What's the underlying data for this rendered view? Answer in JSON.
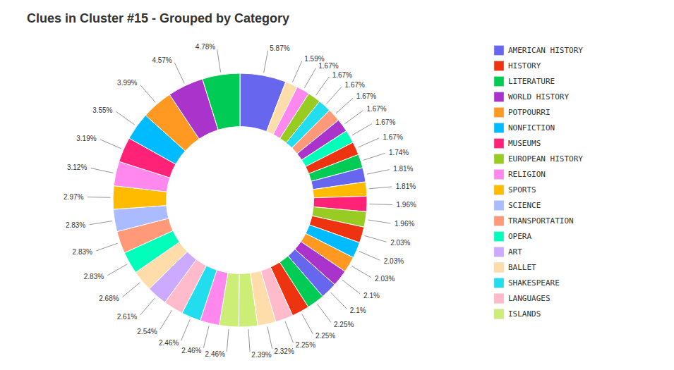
{
  "chart_data": {
    "type": "donut",
    "title": "Clues in Cluster #15 - Grouped by Category",
    "values": [
      5.87,
      1.59,
      1.67,
      1.67,
      1.67,
      1.67,
      1.67,
      1.67,
      1.67,
      1.74,
      1.81,
      1.81,
      1.96,
      1.96,
      2.03,
      2.03,
      2.03,
      2.1,
      2.1,
      2.25,
      2.25,
      2.25,
      2.32,
      2.39,
      2.46,
      2.46,
      2.46,
      2.54,
      2.61,
      2.68,
      2.83,
      2.83,
      2.83,
      2.97,
      3.12,
      3.19,
      3.55,
      3.99,
      4.57,
      4.78
    ],
    "value_labels": [
      "5.87%",
      "1.59%",
      "1.67%",
      "1.67%",
      "1.67%",
      "1.67%",
      "1.67%",
      "1.67%",
      "1.67%",
      "1.74%",
      "1.81%",
      "1.81%",
      "1.96%",
      "1.96%",
      "2.03%",
      "2.03%",
      "2.03%",
      "2.1%",
      "2.1%",
      "2.25%",
      "2.25%",
      "2.25%",
      "2.32%",
      "2.39%",
      "2.46%",
      "2.46%",
      "2.46%",
      "2.54%",
      "2.61%",
      "2.68%",
      "2.83%",
      "2.83%",
      "2.83%",
      "2.97%",
      "3.12%",
      "3.19%",
      "3.55%",
      "3.99%",
      "4.57%",
      "4.78%"
    ],
    "colors": [
      "#6666ee",
      "#ffddaa",
      "#ff88ee",
      "#99cc22",
      "#22ddee",
      "#ff9977",
      "#aa33cc",
      "#00ffbb",
      "#ee3311",
      "#00cc55",
      "#6666ee",
      "#ffbb00",
      "#ff2277",
      "#99cc22",
      "#ee3311",
      "#00bbff",
      "#ff9922",
      "#aa33cc",
      "#6666ee",
      "#00cc55",
      "#ee3311",
      "#ffbbcc",
      "#ffddaa",
      "#ccee77",
      "#ccee77",
      "#ff88ee",
      "#22ddee",
      "#ffbbcc",
      "#ccaaff",
      "#ffddaa",
      "#00ffbb",
      "#ff9977",
      "#aabbff",
      "#ffbb00",
      "#ff88ee",
      "#ff2277",
      "#00bbff",
      "#ff9922",
      "#aa33cc",
      "#00cc55"
    ],
    "data_labels": true,
    "legend": "right",
    "series": [
      {
        "name": "AMERICAN HISTORY",
        "color": "#6666ee"
      },
      {
        "name": "HISTORY",
        "color": "#ee3311"
      },
      {
        "name": "LITERATURE",
        "color": "#00cc55"
      },
      {
        "name": "WORLD HISTORY",
        "color": "#aa33cc"
      },
      {
        "name": "POTPOURRI",
        "color": "#ff9922"
      },
      {
        "name": "NONFICTION",
        "color": "#00bbff"
      },
      {
        "name": "MUSEUMS",
        "color": "#ff2277"
      },
      {
        "name": "EUROPEAN HISTORY",
        "color": "#99cc22"
      },
      {
        "name": "RELIGION",
        "color": "#ff88ee"
      },
      {
        "name": "SPORTS",
        "color": "#ffbb00"
      },
      {
        "name": "SCIENCE",
        "color": "#aabbff"
      },
      {
        "name": "TRANSPORTATION",
        "color": "#ff9977"
      },
      {
        "name": "OPERA",
        "color": "#00ffbb"
      },
      {
        "name": "ART",
        "color": "#ccaaff"
      },
      {
        "name": "BALLET",
        "color": "#ffddaa"
      },
      {
        "name": "SHAKESPEARE",
        "color": "#22ddee"
      },
      {
        "name": "LANGUAGES",
        "color": "#ffbbcc"
      },
      {
        "name": "ISLANDS",
        "color": "#ccee77"
      }
    ]
  }
}
